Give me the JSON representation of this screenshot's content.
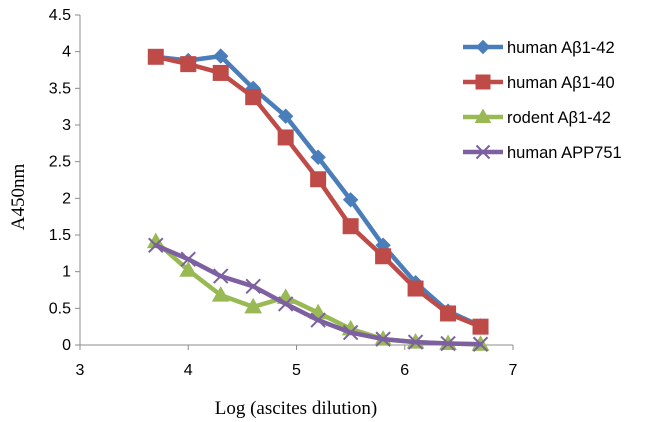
{
  "chart_data": {
    "type": "line",
    "xlabel": "Log  (ascites dilution)",
    "ylabel": "A450nm",
    "xlim": [
      3,
      7
    ],
    "ylim": [
      0,
      4.5
    ],
    "xticks": [
      "3",
      "4",
      "5",
      "6",
      "7"
    ],
    "yticks": [
      "0",
      "0.5",
      "1",
      "1.5",
      "2",
      "2.5",
      "3",
      "3.5",
      "4",
      "4.5"
    ],
    "grid": false,
    "legend_position": "right",
    "series": [
      {
        "name": "human Aβ1-42",
        "color": "#4a7ebb",
        "marker": "diamond",
        "x": [
          3.7,
          4.0,
          4.3,
          4.6,
          4.9,
          5.2,
          5.5,
          5.8,
          6.1,
          6.4,
          6.7
        ],
        "y": [
          3.93,
          3.88,
          3.94,
          3.5,
          3.12,
          2.56,
          1.98,
          1.36,
          0.85,
          0.46,
          0.26
        ]
      },
      {
        "name": "human Aβ1-40",
        "color": "#be4b48",
        "marker": "square",
        "x": [
          3.7,
          4.0,
          4.3,
          4.6,
          4.9,
          5.2,
          5.5,
          5.8,
          6.1,
          6.4,
          6.7
        ],
        "y": [
          3.93,
          3.83,
          3.71,
          3.38,
          2.83,
          2.26,
          1.62,
          1.21,
          0.77,
          0.43,
          0.25
        ]
      },
      {
        "name": "rodent Aβ1-42",
        "color": "#98b954",
        "marker": "triangle",
        "x": [
          3.7,
          4.0,
          4.3,
          4.6,
          4.9,
          5.2,
          5.5,
          5.8,
          6.1,
          6.4,
          6.7
        ],
        "y": [
          1.41,
          1.02,
          0.68,
          0.52,
          0.65,
          0.44,
          0.22,
          0.08,
          0.04,
          0.02,
          0.01
        ]
      },
      {
        "name": "human APP751",
        "color": "#7d60a0",
        "marker": "x",
        "x": [
          3.7,
          4.0,
          4.3,
          4.6,
          4.9,
          5.2,
          5.5,
          5.8,
          6.1,
          6.4,
          6.7
        ],
        "y": [
          1.36,
          1.17,
          0.94,
          0.8,
          0.56,
          0.34,
          0.17,
          0.08,
          0.04,
          0.02,
          0.01
        ]
      }
    ]
  }
}
